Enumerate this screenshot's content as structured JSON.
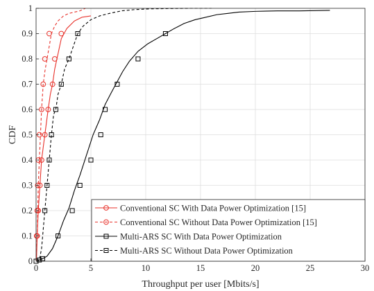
{
  "chart_data": {
    "type": "line",
    "title": "",
    "xlabel": "Throughput per user [Mbits/s]",
    "ylabel": "CDF",
    "xlim": [
      0,
      30
    ],
    "ylim": [
      0,
      1
    ],
    "xticks": [
      0,
      5,
      10,
      15,
      20,
      25,
      30
    ],
    "yticks": [
      0,
      0.1,
      0.2,
      0.3,
      0.4,
      0.5,
      0.6,
      0.7,
      0.8,
      0.9,
      1
    ],
    "grid": true,
    "legend_position": "bottom-right",
    "series": [
      {
        "name": "Conventional SC With Data Power Optimization [15]",
        "color": "#e8312a",
        "line_style": "solid",
        "marker": "circle",
        "x": [
          0,
          0.05,
          0.1,
          0.2,
          0.35,
          0.5,
          0.65,
          0.8,
          0.95,
          1.1,
          1.3,
          1.5,
          1.7,
          2.0,
          2.3,
          2.8,
          3.5,
          4.2,
          5.0
        ],
        "y": [
          0,
          0.02,
          0.1,
          0.2,
          0.3,
          0.4,
          0.45,
          0.5,
          0.55,
          0.6,
          0.66,
          0.7,
          0.76,
          0.82,
          0.88,
          0.92,
          0.95,
          0.965,
          0.97
        ],
        "marker_x": [
          0.1,
          0.2,
          0.35,
          0.5,
          0.8,
          1.1,
          1.5,
          1.7,
          2.3
        ],
        "marker_y": [
          0.1,
          0.2,
          0.3,
          0.4,
          0.5,
          0.6,
          0.7,
          0.8,
          0.9
        ]
      },
      {
        "name": "Conventional SC Without Data Power Optimization [15]",
        "color": "#e8312a",
        "line_style": "dashed",
        "marker": "circle",
        "x": [
          0,
          0.05,
          0.1,
          0.15,
          0.2,
          0.3,
          0.4,
          0.5,
          0.65,
          0.8,
          1.0,
          1.2,
          1.4,
          1.7,
          2.0,
          2.5,
          3.0,
          3.5,
          4.0,
          4.5
        ],
        "y": [
          0,
          0.05,
          0.1,
          0.2,
          0.3,
          0.4,
          0.5,
          0.6,
          0.7,
          0.75,
          0.8,
          0.85,
          0.9,
          0.93,
          0.95,
          0.97,
          0.98,
          0.985,
          0.99,
          1.0
        ],
        "marker_x": [
          0.05,
          0.1,
          0.15,
          0.2,
          0.3,
          0.5,
          0.65,
          0.8,
          1.2
        ],
        "marker_y": [
          0.1,
          0.2,
          0.3,
          0.4,
          0.5,
          0.6,
          0.7,
          0.8,
          0.9
        ]
      },
      {
        "name": "Multi-ARS SC With Data Power Optimization",
        "color": "#000000",
        "line_style": "solid",
        "marker": "square",
        "x": [
          0,
          0.3,
          0.6,
          1.0,
          1.5,
          2.0,
          2.5,
          3.0,
          3.5,
          4.0,
          4.6,
          5.2,
          5.8,
          6.3,
          6.9,
          7.4,
          7.9,
          8.5,
          9.3,
          10.2,
          11.0,
          11.8,
          12.6,
          13.5,
          14.5,
          15.5,
          16.5,
          17.5,
          18.5,
          20.0,
          22.0,
          24.0,
          26.8
        ],
        "y": [
          0,
          0.005,
          0.01,
          0.02,
          0.05,
          0.1,
          0.16,
          0.21,
          0.28,
          0.34,
          0.42,
          0.5,
          0.56,
          0.62,
          0.67,
          0.71,
          0.75,
          0.79,
          0.83,
          0.86,
          0.88,
          0.9,
          0.92,
          0.94,
          0.955,
          0.965,
          0.975,
          0.98,
          0.985,
          0.988,
          0.99,
          0.99,
          0.992
        ],
        "marker_x": [
          0,
          0.6,
          2.0,
          3.3,
          4.0,
          5.0,
          5.9,
          6.3,
          7.4,
          9.3,
          11.8
        ],
        "marker_y": [
          0,
          0.01,
          0.1,
          0.2,
          0.3,
          0.4,
          0.5,
          0.6,
          0.7,
          0.8,
          0.9
        ]
      },
      {
        "name": "Multi-ARS SC Without Data Power Optimization",
        "color": "#000000",
        "line_style": "dashed",
        "marker": "square",
        "x": [
          0,
          0.3,
          0.5,
          0.8,
          1.0,
          1.2,
          1.4,
          1.6,
          1.8,
          2.0,
          2.3,
          2.6,
          3.0,
          3.4,
          3.8,
          4.3,
          5.0,
          5.8,
          6.7,
          7.8,
          9.0,
          10.5,
          12.0,
          14.0,
          16.0
        ],
        "y": [
          0,
          0.005,
          0.05,
          0.2,
          0.3,
          0.4,
          0.5,
          0.58,
          0.6,
          0.66,
          0.7,
          0.76,
          0.8,
          0.85,
          0.9,
          0.93,
          0.955,
          0.97,
          0.98,
          0.99,
          0.995,
          0.998,
          0.999,
          1.0,
          1.0
        ],
        "marker_x": [
          0,
          0.3,
          0.8,
          1.0,
          1.2,
          1.4,
          1.8,
          2.3,
          3.0,
          3.8
        ],
        "marker_y": [
          0,
          0.005,
          0.2,
          0.3,
          0.4,
          0.5,
          0.6,
          0.7,
          0.8,
          0.9
        ]
      }
    ]
  }
}
